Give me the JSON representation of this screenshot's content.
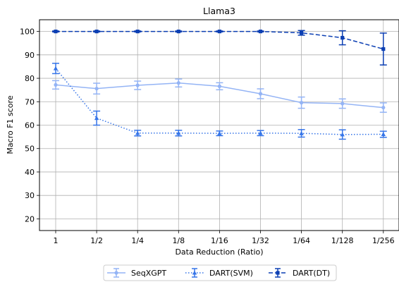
{
  "chart_data": {
    "type": "line",
    "title": "Llama3",
    "xlabel": "Data Reduction (Ratio)",
    "ylabel": "Macro F1 score",
    "categories": [
      "1",
      "1/2",
      "1/4",
      "1/8",
      "1/16",
      "1/32",
      "1/64",
      "1/128",
      "1/256"
    ],
    "ylim": [
      15,
      105
    ],
    "yticks": [
      20,
      30,
      40,
      50,
      60,
      70,
      80,
      90,
      100
    ],
    "grid": true,
    "legend_position": "bottom-center",
    "series": [
      {
        "name": "SeqXGPT",
        "color": "#94b4f5",
        "line_style": "solid",
        "marker": "circle",
        "values": [
          77.2,
          75.6,
          77.0,
          78.0,
          76.6,
          73.4,
          69.6,
          69.2,
          67.5
        ],
        "errors": [
          1.8,
          2.3,
          1.8,
          1.7,
          1.5,
          2.1,
          2.4,
          2.0,
          2.0
        ]
      },
      {
        "name": "DART(SVM)",
        "color": "#3574e8",
        "line_style": "dotted",
        "marker": "triangle",
        "values": [
          84.2,
          63.0,
          56.6,
          56.6,
          56.5,
          56.6,
          56.5,
          56.0,
          56.1
        ],
        "errors": [
          2.2,
          3.0,
          1.2,
          1.2,
          1.0,
          1.1,
          1.6,
          2.0,
          1.3
        ]
      },
      {
        "name": "DART(DT)",
        "color": "#0c3fb3",
        "line_style": "dashed",
        "marker": "square",
        "values": [
          100.0,
          100.0,
          100.0,
          100.0,
          100.0,
          100.0,
          99.4,
          97.3,
          92.5
        ],
        "errors": [
          0.2,
          0.2,
          0.2,
          0.2,
          0.2,
          0.2,
          1.0,
          3.0,
          6.8
        ]
      }
    ]
  }
}
